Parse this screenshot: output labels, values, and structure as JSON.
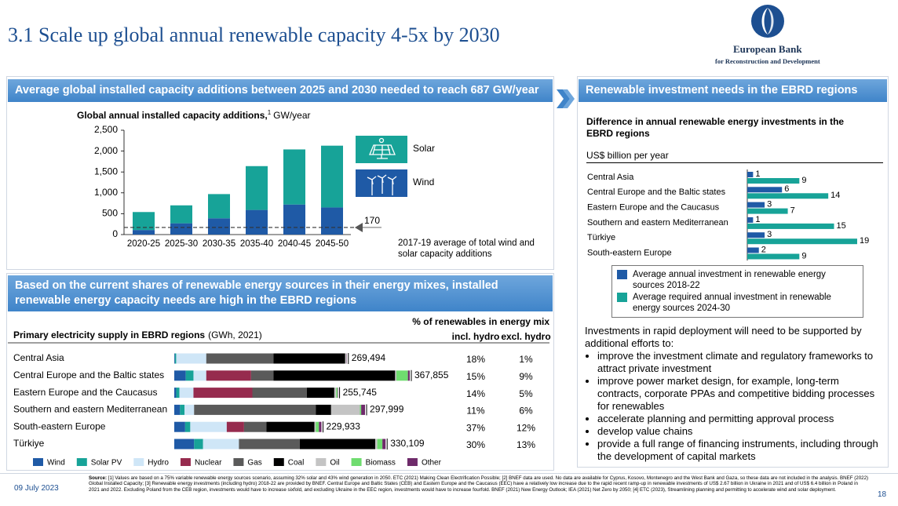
{
  "header": {
    "title": "3.1 Scale up global annual renewable capacity 4-5x by 2030",
    "logo_name": "European Bank",
    "logo_subtitle": "for Reconstruction and Development"
  },
  "panels": {
    "capacity": "Average global installed capacity additions between 2025 and 2030 needed to reach 687 GW/year",
    "investment": "Renewable investment needs in the EBRD regions",
    "energy_mix": "Based on the current shares of renewable energy sources in their energy mixes, installed renewable energy capacity needs are high in the EBRD regions"
  },
  "chart_data": [
    {
      "type": "bar",
      "stacked": true,
      "title": "Global annual installed capacity additions,",
      "title_note": "1",
      "title_unit": "GW/year",
      "categories": [
        "2020-25",
        "2025-30",
        "2030-35",
        "2035-40",
        "2040-45",
        "2045-50"
      ],
      "series": [
        {
          "name": "Wind",
          "color": "#1f5aa6",
          "values": [
            110,
            270,
            390,
            590,
            720,
            650
          ]
        },
        {
          "name": "Solar",
          "color": "#17a398",
          "values": [
            430,
            430,
            580,
            1050,
            1320,
            1480
          ]
        }
      ],
      "ylim": [
        0,
        2500
      ],
      "yticks": [
        0,
        500,
        {
          "value": 1000,
          "label": "1,000"
        },
        {
          "value": 1500,
          "label": "1,500"
        },
        {
          "value": 2000,
          "label": "2,000"
        },
        {
          "value": 2500,
          "label": "2,500"
        }
      ],
      "reference_line": {
        "value": 170,
        "note": "2017-19 average of total wind and solar capacity additions"
      }
    },
    {
      "type": "hbar",
      "title": "Difference in annual renewable energy investments in the EBRD regions",
      "subtitle": "US$ billion per year",
      "categories": [
        "Central Asia",
        "Central Europe and the Baltic states",
        "Eastern Europe and the Caucasus",
        "Southern and eastern Mediterranean",
        "Türkiye",
        "South-eastern Europe"
      ],
      "series": [
        {
          "name": "Average annual investment in renewable energy sources 2018-22",
          "color": "#1f5aa6",
          "values": [
            1,
            6,
            3,
            1,
            3,
            2
          ]
        },
        {
          "name": "Average required annual investment in renewable energy sources 2024-30",
          "color": "#17a398",
          "values": [
            9,
            14,
            7,
            15,
            19,
            9
          ]
        }
      ]
    },
    {
      "type": "stacked_hbar",
      "title": "Primary electricity supply in EBRD regions",
      "title_unit": "(GWh, 2021)",
      "categories": [
        "Central Asia",
        "Central Europe and the Baltic states",
        "Eastern Europe and the Caucasus",
        "Southern and eastern Mediterranean",
        "South-eastern Europe",
        "Türkiye"
      ],
      "series": [
        {
          "name": "Wind",
          "color": "#1f5aa6",
          "values": [
            1000,
            18000,
            3000,
            9000,
            17000,
            31000
          ]
        },
        {
          "name": "Solar PV",
          "color": "#17a398",
          "values": [
            2000,
            12000,
            5000,
            7000,
            8000,
            14000
          ]
        },
        {
          "name": "Hydro",
          "color": "#cfe6f7",
          "values": [
            47000,
            20000,
            22000,
            15000,
            57000,
            56000
          ]
        },
        {
          "name": "Nuclear",
          "color": "#962b4e",
          "values": [
            0,
            70000,
            92000,
            0,
            27000,
            0
          ]
        },
        {
          "name": "Gas",
          "color": "#5a5a5a",
          "values": [
            105000,
            35000,
            85000,
            190000,
            35000,
            95000
          ]
        },
        {
          "name": "Coal",
          "color": "#000000",
          "values": [
            112000,
            190000,
            43000,
            24000,
            75000,
            118000
          ]
        },
        {
          "name": "Oil",
          "color": "#c4c4c4",
          "values": [
            2000,
            2000,
            3000,
            45000,
            2000,
            3109
          ]
        },
        {
          "name": "Biomass",
          "color": "#6fdc6f",
          "values": [
            0,
            18000,
            2000,
            2000,
            5000,
            8000
          ]
        },
        {
          "name": "Other",
          "color": "#6e2a6a",
          "values": [
            494,
            2855,
            745,
            5999,
            3933,
            5000
          ]
        }
      ],
      "totals": [
        269494,
        367855,
        255745,
        297999,
        229933,
        330109
      ],
      "total_labels": [
        "269,494",
        "367,855",
        "255,745",
        "297,999",
        "229,933",
        "330,109"
      ],
      "table": {
        "title": "% of renewables in energy mix",
        "columns": [
          "incl. hydro",
          "excl. hydro"
        ],
        "values": [
          [
            18,
            1
          ],
          [
            15,
            9
          ],
          [
            14,
            5
          ],
          [
            11,
            6
          ],
          [
            37,
            12
          ],
          [
            30,
            13
          ]
        ],
        "value_labels": [
          [
            "18%",
            "1%"
          ],
          [
            "15%",
            "9%"
          ],
          [
            "14%",
            "5%"
          ],
          [
            "11%",
            "6%"
          ],
          [
            "37%",
            "12%"
          ],
          [
            "30%",
            "13%"
          ]
        ]
      }
    }
  ],
  "bullets": {
    "intro": "Investments in rapid deployment will need to be supported by additional efforts to:",
    "items": [
      "improve the investment climate and regulatory frameworks to attract private investment",
      "improve power market design, for example, long-term contracts, corporate PPAs and competitive bidding processes for renewables",
      "accelerate planning and permitting approval process",
      "develop value chains",
      "provide a full range of financing instruments, including through the development of capital markets"
    ]
  },
  "footer": {
    "date": "09 July 2023",
    "page": "18",
    "source_label": "Source:",
    "source": "[1] Values are based on a 75% variable renewable energy sources scenario, assuming 32% solar and 43% wind generation in 2050. ETC (2021) Making Clean Electrification Possible; [2] BNEF data are used. No data are available for Cyprus, Kosovo, Montenegro and the West Bank and Gaza, so these data are not included in the analysis. BNEF (2022) Global Installed Capacity; [3] Renewable energy investments (including hydro) 2018-22 are provided by BNEF. Central Europe and Baltic States (CEB) and Eastern Europe and the Caucasus (EEC) have a relatively low increase due to the rapid recent ramp-up in renewable investments of US$ 2.67 billion in Ukraine in 2021 and of US$ 6.4 billion in Poland in 2021 and 2022. Excluding Poland from the CEB region, investments would have to increase sixfold, and excluding Ukraine in the EEC region, investments would have to increase fourfold. BNEF (2021) New Energy Outlook; IEA (2021) Net Zero by 2050; [4] ETC (2023), Streamlining planning and permitting to accelerate wind and solar deployment."
  }
}
